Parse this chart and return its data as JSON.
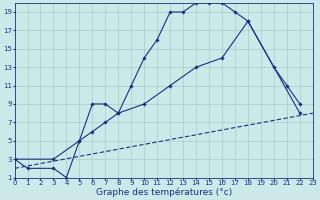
{
  "title": "Graphe des températures (°c)",
  "bg_color": "#cce8e8",
  "grid_color": "#aacccc",
  "line_color": "#1a3080",
  "marker_style": "D",
  "marker_size": 1.8,
  "line_width": 0.8,
  "xlim": [
    0,
    23
  ],
  "ylim": [
    1,
    20
  ],
  "xticks": [
    0,
    1,
    2,
    3,
    4,
    5,
    6,
    7,
    8,
    9,
    10,
    11,
    12,
    13,
    14,
    15,
    16,
    17,
    18,
    19,
    20,
    21,
    22,
    23
  ],
  "yticks": [
    1,
    3,
    5,
    7,
    9,
    11,
    13,
    15,
    17,
    19
  ],
  "line1_x": [
    0,
    1,
    3,
    4,
    5,
    6,
    7,
    8,
    9,
    10,
    11,
    12,
    13,
    14,
    15,
    16,
    17,
    18,
    22
  ],
  "line1_y": [
    3,
    2,
    2,
    1,
    5,
    9,
    9,
    8,
    11,
    14,
    16,
    19,
    19,
    20,
    20,
    20,
    19,
    18,
    8
  ],
  "line2_x": [
    0,
    3,
    5,
    6,
    7,
    8,
    10,
    12,
    14,
    16,
    18,
    20,
    21,
    22
  ],
  "line2_y": [
    3,
    3,
    5,
    6,
    7,
    8,
    9,
    11,
    13,
    14,
    18,
    13,
    11,
    9
  ],
  "line3_x": [
    0,
    23
  ],
  "line3_y": [
    2,
    8
  ],
  "tick_fontsize": 5.0,
  "xlabel_fontsize": 6.5
}
